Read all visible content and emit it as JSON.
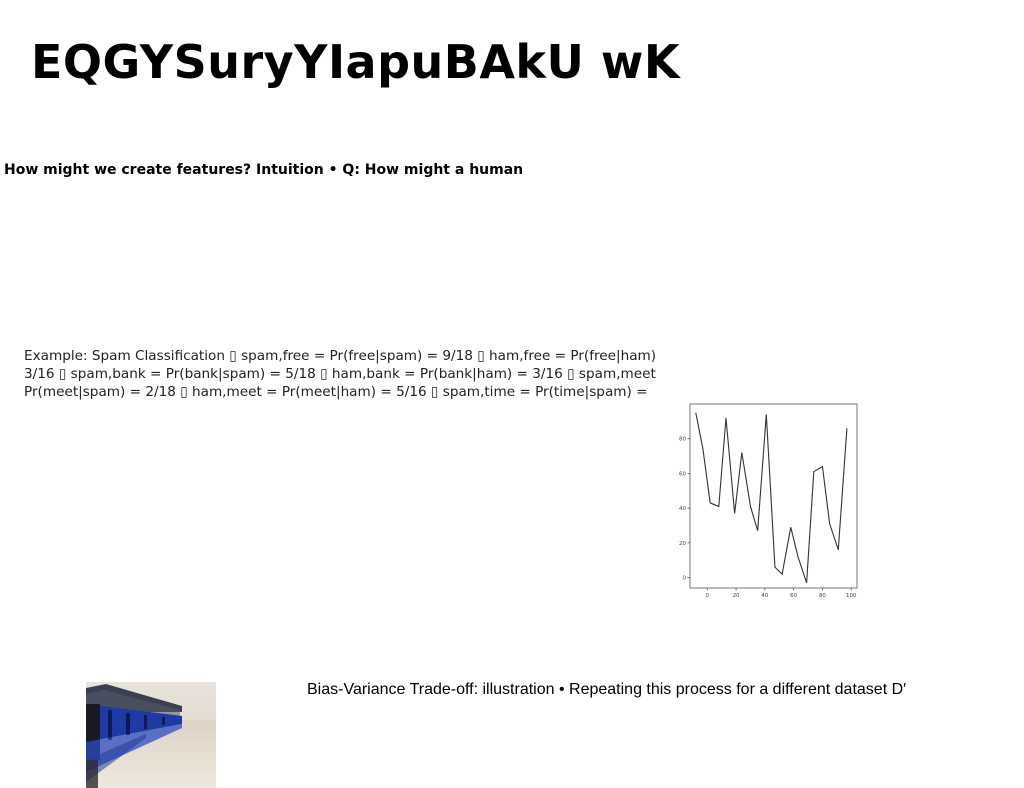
{
  "slide": {
    "title": "EQGYSuryYIapuBAkU wK",
    "subtitle": "How might we create features? Intuition • Q: How might a human"
  },
  "spam_example": {
    "lines": [
      "Example: Spam Classification ▯ spam,free = Pr(free|spam) = 9/18 ▯ ham,free = Pr(free|ham)",
      "3/16 ▯ spam,bank = Pr(bank|spam) = 5/18 ▯ ham,bank = Pr(bank|ham) = 3/16 ▯ spam,meet",
      "Pr(meet|spam) = 2/18 ▯ ham,meet = Pr(meet|ham) = 5/16 ▯ spam,time = Pr(time|spam) ="
    ]
  },
  "bias_variance": {
    "caption": "Bias-Variance Trade-off: illustration • Repeating this process for a different dataset D′"
  },
  "chart_data": {
    "type": "line",
    "title": "",
    "xlabel": "",
    "ylabel": "",
    "xlim": [
      -12,
      104
    ],
    "ylim": [
      -6,
      100
    ],
    "xticks": [
      0,
      20,
      40,
      60,
      80,
      100
    ],
    "yticks": [
      0,
      20,
      40,
      60,
      80
    ],
    "grid": false,
    "series": [
      {
        "color": "#333333",
        "x": [
          -8,
          -3,
          2,
          8,
          13,
          19,
          24,
          30,
          35,
          41,
          47,
          52,
          58,
          63,
          69,
          74,
          80,
          85,
          91,
          97
        ],
        "y": [
          95,
          74,
          43,
          41,
          92,
          37,
          72,
          41,
          27,
          94,
          6,
          2,
          29,
          12,
          -3,
          61,
          64,
          31,
          16,
          86
        ]
      }
    ]
  },
  "photo": {
    "icon": "boathouse-photo",
    "colors": {
      "sky": "#dcd6cc",
      "water": "#e6ddd0",
      "roof": "#3a3f52",
      "wall": "#1f3aa6",
      "dark": "#1a1a22"
    }
  }
}
